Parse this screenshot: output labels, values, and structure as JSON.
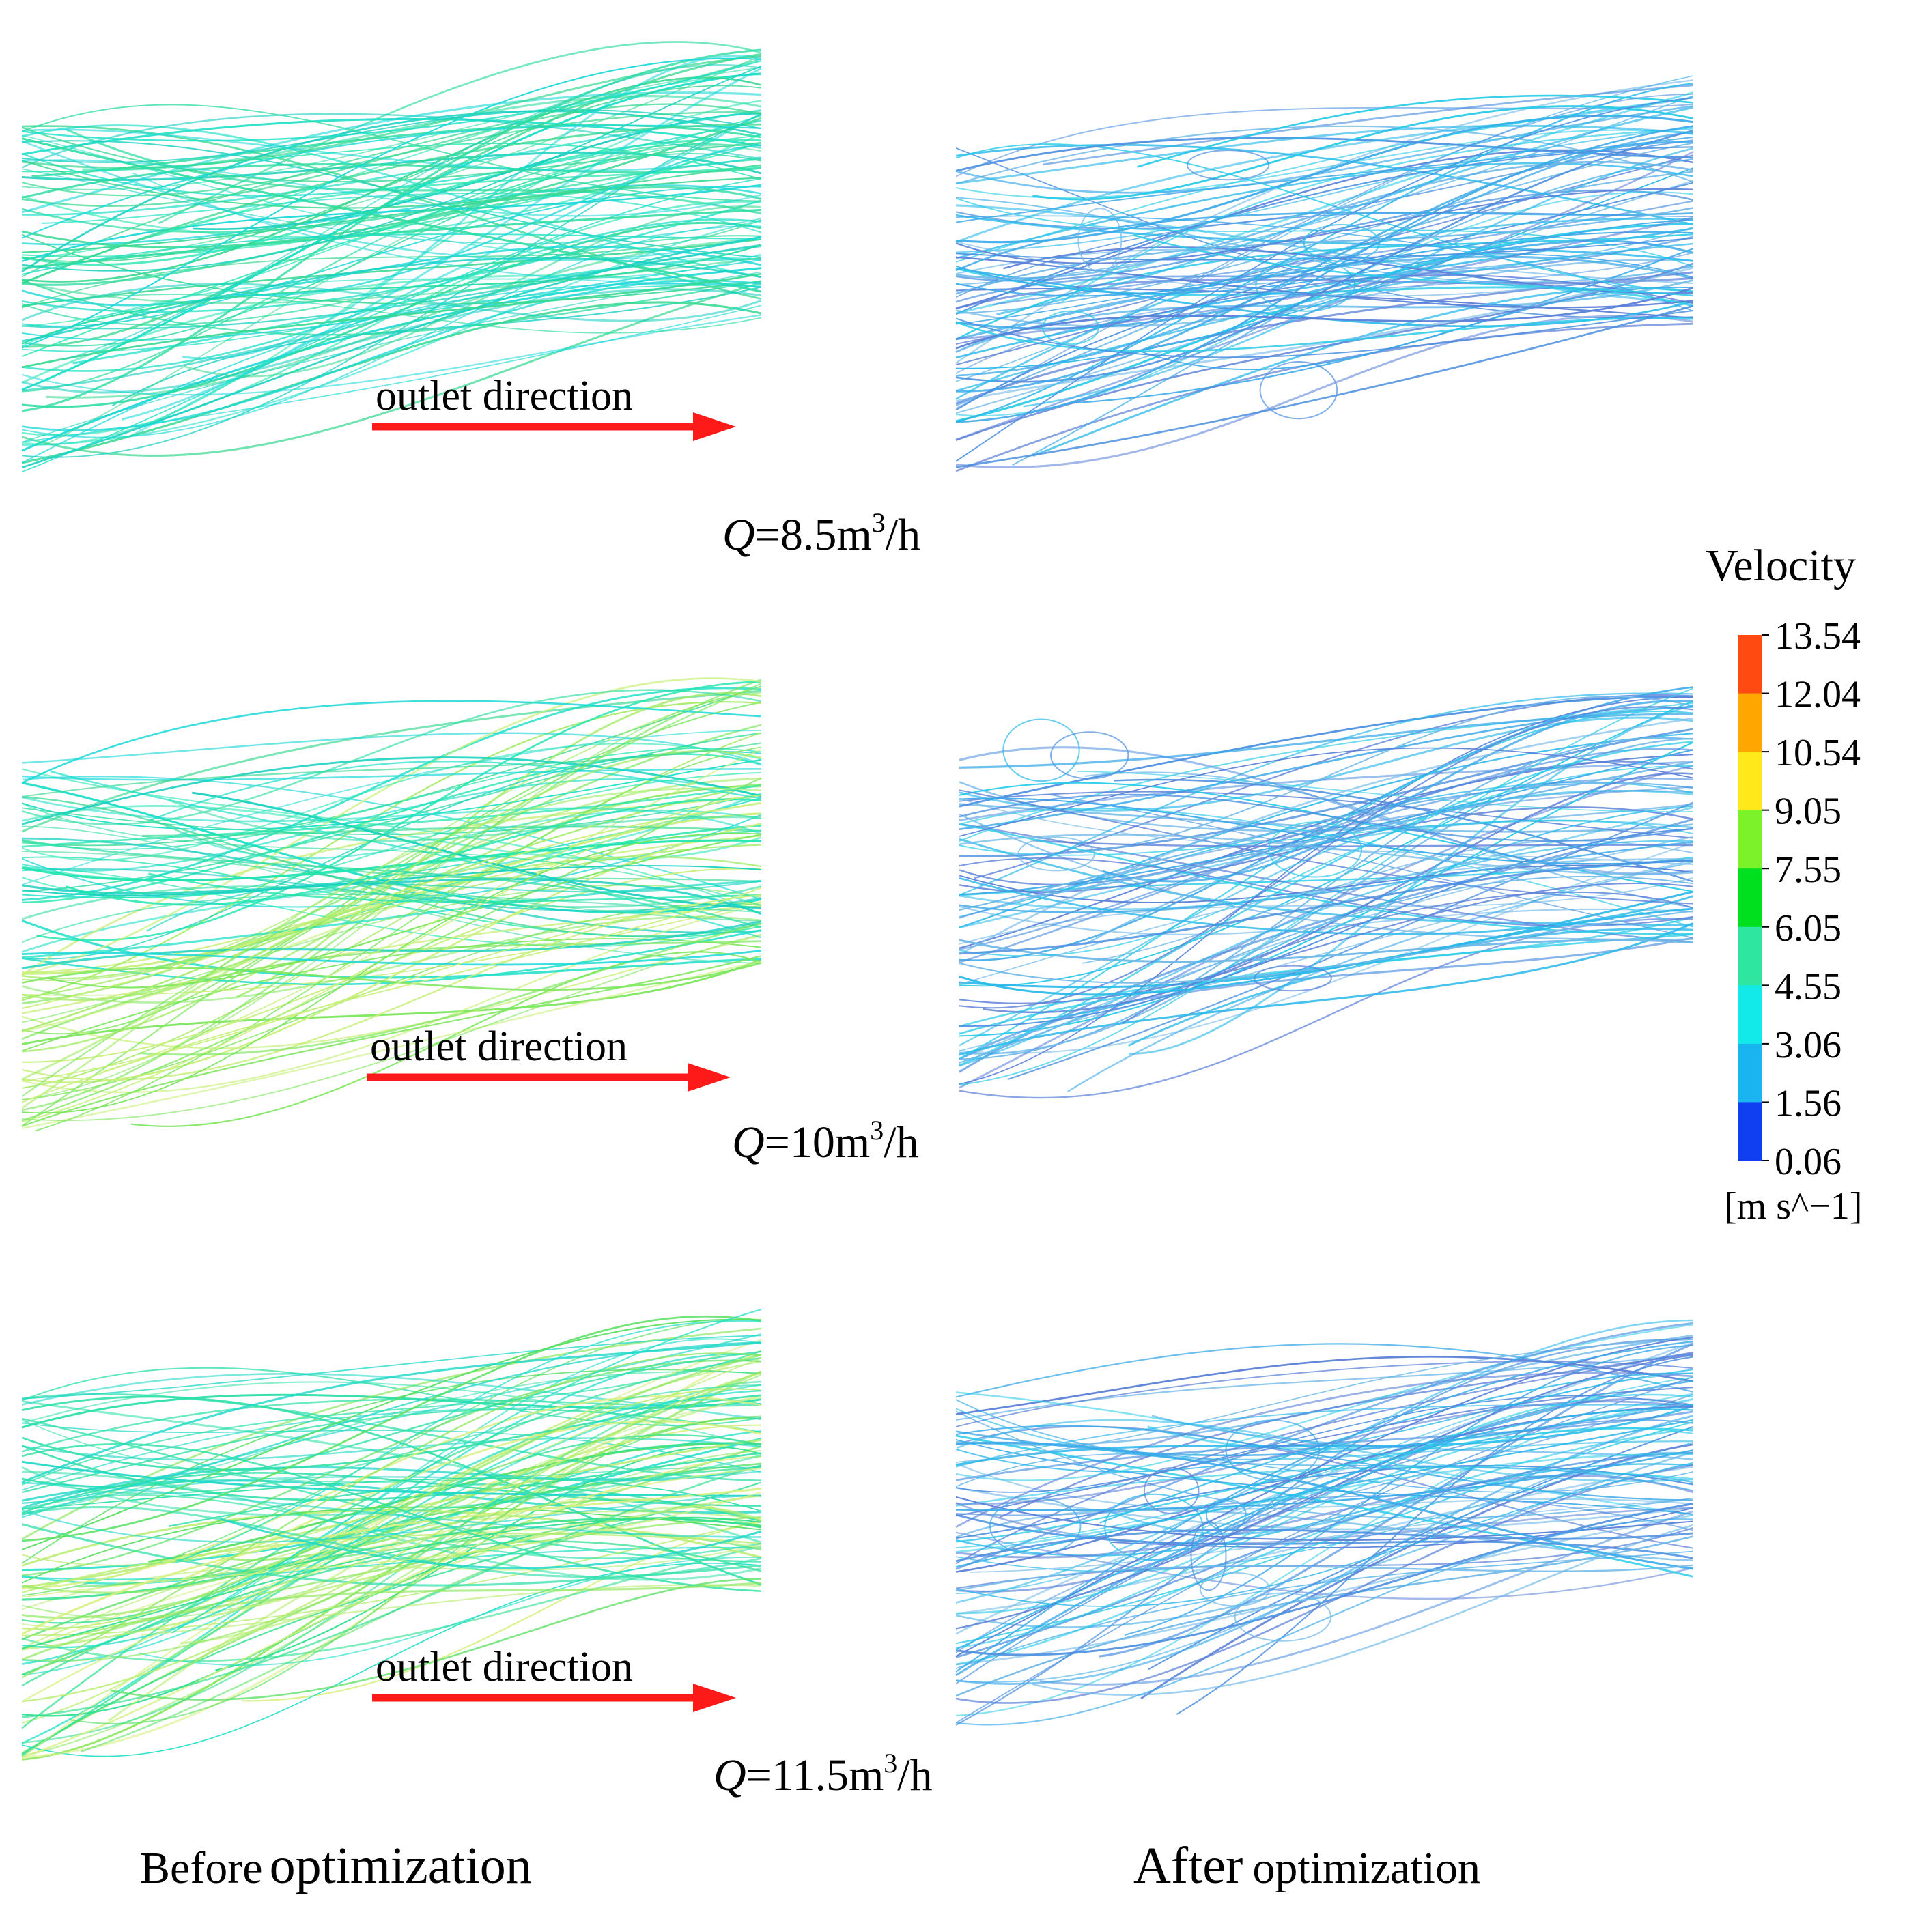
{
  "figure": {
    "rows": [
      {
        "flow_rate": {
          "symbol": "Q",
          "prefix": "=8.5m",
          "sup": "3",
          "suffix": "/h"
        },
        "outlet_label": "outlet direction"
      },
      {
        "flow_rate": {
          "symbol": "Q",
          "prefix": "=10m",
          "sup": "3",
          "suffix": "/h"
        },
        "outlet_label": "outlet direction"
      },
      {
        "flow_rate": {
          "symbol": "Q",
          "prefix": "=11.5m",
          "sup": "3",
          "suffix": "/h"
        },
        "outlet_label": "outlet direction"
      }
    ],
    "columns": {
      "before": {
        "word": "Before",
        "rest": "optimization"
      },
      "after": {
        "word": "After",
        "rest": "optimization"
      }
    },
    "arrow_color": "#ff1a1a",
    "legend": {
      "title": "Velocity",
      "units": "[m s^−1]",
      "ticks": [
        "13.54",
        "12.04",
        "10.54",
        "9.05",
        "7.55",
        "6.05",
        "4.55",
        "3.06",
        "1.56",
        "0.06"
      ],
      "bands_top_to_bottom": [
        "#ff4a12",
        "#ffa600",
        "#ffe91a",
        "#7cf22a",
        "#00e01e",
        "#2ee6a0",
        "#12eaea",
        "#1ab4f0",
        "#0f3ff0"
      ]
    }
  }
}
